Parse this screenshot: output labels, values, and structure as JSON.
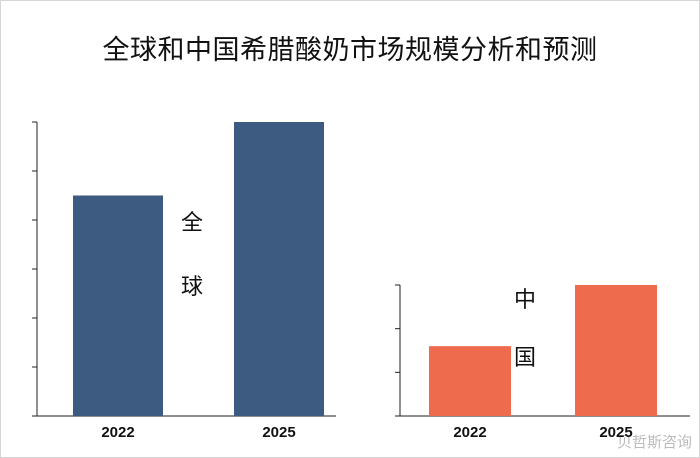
{
  "title": "全球和中国希腊酸奶市场规模分析和预测",
  "watermark": "贝哲斯咨询",
  "chart_data": [
    {
      "type": "bar",
      "name": "全球",
      "categories": [
        "2022",
        "2025"
      ],
      "values": [
        4.5,
        6.0
      ],
      "ylim": [
        0,
        6.0
      ],
      "color": "#3d5a80"
    },
    {
      "type": "bar",
      "name": "中国",
      "categories": [
        "2022",
        "2025"
      ],
      "values": [
        1.6,
        3.0
      ],
      "ylim": [
        0,
        3.0
      ],
      "color": "#ee6c4d"
    }
  ]
}
